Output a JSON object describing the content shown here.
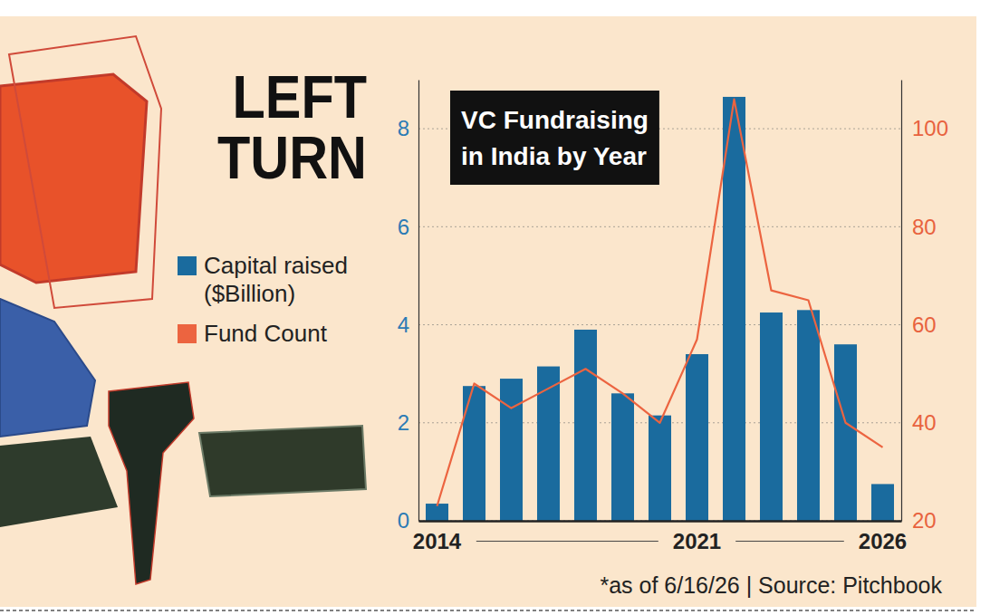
{
  "chart_data": {
    "type": "bar",
    "headline": "LEFT TURN",
    "title": "VC Fundraising in India by Year",
    "note": "*as of 6/16/26 | Source: Pitchbook",
    "categories": [
      "2014",
      null,
      null,
      null,
      null,
      null,
      null,
      "2021",
      null,
      null,
      null,
      null,
      "2026"
    ],
    "series": [
      {
        "name": "Capital raised ($Billion)",
        "type": "bar",
        "color": "#1a6b9e",
        "values": [
          0.35,
          2.75,
          2.9,
          3.15,
          3.9,
          2.6,
          2.15,
          3.4,
          8.65,
          4.25,
          4.3,
          3.6,
          0.75
        ]
      },
      {
        "name": "Fund Count",
        "type": "line",
        "axis": "y2",
        "color": "#ec6440",
        "values": [
          23,
          48,
          43,
          47,
          51,
          46,
          40,
          57,
          106,
          67,
          65,
          40,
          35
        ]
      }
    ],
    "ylim": [
      0,
      9
    ],
    "yticks": [
      0,
      2,
      4,
      6,
      8
    ],
    "y2lim": [
      20,
      110
    ],
    "y2ticks": [
      20,
      40,
      60,
      80,
      100
    ],
    "grid": true,
    "legend": "left"
  }
}
